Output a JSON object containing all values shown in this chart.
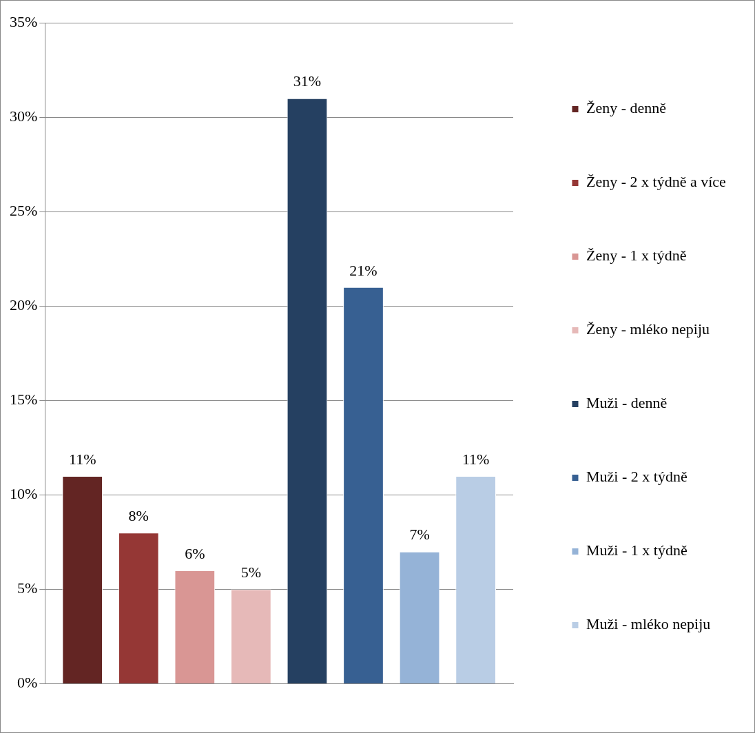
{
  "chart_data": {
    "type": "bar",
    "categories": [
      null
    ],
    "series": [
      {
        "name": "Ženy - denně",
        "color": "#632523",
        "values": [
          11
        ],
        "value_labels": [
          "11%"
        ]
      },
      {
        "name": "Ženy - 2 x týdně a více",
        "color": "#953735",
        "values": [
          8
        ],
        "value_labels": [
          "8%"
        ]
      },
      {
        "name": "Ženy - 1 x týdně",
        "color": "#d99694",
        "values": [
          6
        ],
        "value_labels": [
          "6%"
        ]
      },
      {
        "name": "Ženy - mléko nepiju",
        "color": "#e6b9b8",
        "values": [
          5
        ],
        "value_labels": [
          "5%"
        ]
      },
      {
        "name": "Muži - denně",
        "color": "#254061",
        "values": [
          31
        ],
        "value_labels": [
          "31%"
        ]
      },
      {
        "name": "Muži - 2 x týdně",
        "color": "#376092",
        "values": [
          21
        ],
        "value_labels": [
          "21%"
        ]
      },
      {
        "name": "Muži - 1 x týdně",
        "color": "#95b3d7",
        "values": [
          7
        ],
        "value_labels": [
          "7%"
        ]
      },
      {
        "name": "Muži - mléko nepiju",
        "color": "#b9cde5",
        "values": [
          11
        ],
        "value_labels": [
          "11%"
        ]
      }
    ],
    "ylim": [
      0,
      35
    ],
    "yticks": [
      {
        "value": 0,
        "label": "0%"
      },
      {
        "value": 5,
        "label": "5%"
      },
      {
        "value": 10,
        "label": "10%"
      },
      {
        "value": 15,
        "label": "15%"
      },
      {
        "value": 20,
        "label": "20%"
      },
      {
        "value": 25,
        "label": "25%"
      },
      {
        "value": 30,
        "label": "30%"
      },
      {
        "value": 35,
        "label": "35%"
      }
    ],
    "grid": "y",
    "legend": "right"
  }
}
